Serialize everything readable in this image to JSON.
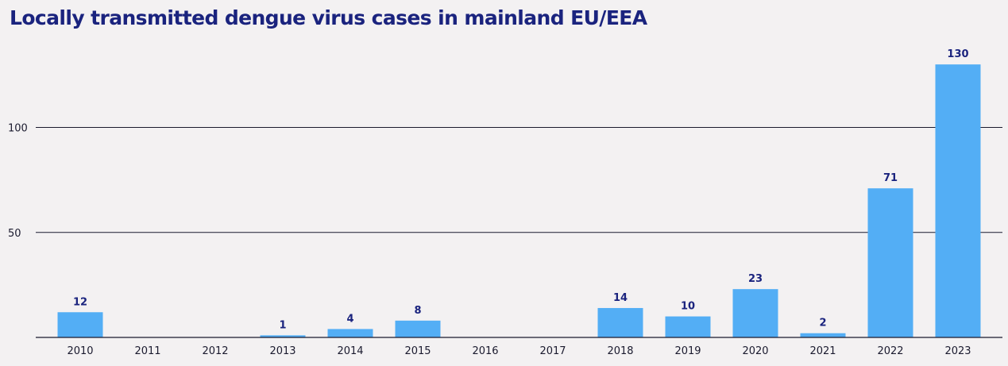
{
  "chart_data": {
    "type": "bar",
    "title": "Locally transmitted dengue virus cases in mainland EU/EEA",
    "xlabel": "",
    "ylabel": "",
    "categories": [
      "2010",
      "2011",
      "2012",
      "2013",
      "2014",
      "2015",
      "2016",
      "2017",
      "2018",
      "2019",
      "2020",
      "2021",
      "2022",
      "2023"
    ],
    "values": [
      12,
      0,
      0,
      1,
      4,
      8,
      0,
      0,
      14,
      10,
      23,
      2,
      71,
      130
    ],
    "data_labels": [
      "12",
      "",
      "",
      "1",
      "4",
      "8",
      "",
      "",
      "14",
      "10",
      "23",
      "2",
      "71",
      "130"
    ],
    "y_ticks": [
      50,
      100
    ],
    "ylim": [
      0,
      130
    ],
    "grid": true,
    "legend": "none",
    "colors": {
      "bar": "#53aef5",
      "title": "#1a237e",
      "gridline": "#1a1a2e",
      "data_label": "#1a237e",
      "background": "#f3f1f2"
    }
  }
}
